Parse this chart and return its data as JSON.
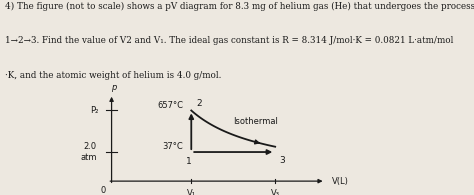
{
  "line1": "4) The figure (not to scale) shows a pV diagram for 8.3 mg of helium gas (He) that undergoes the process",
  "line2": "1→2→3. Find the value of V2 and V₁. The ideal gas constant is R = 8.314 J/mol·K = 0.0821 L·atm/mol",
  "line3": "·K, and the atomic weight of helium is 4.0 g/mol.",
  "p_label": "p",
  "v_label": "V(L)",
  "p2_label": "P₂",
  "p_tick_label": "2.0\natm",
  "x_tick1_label": "V₁",
  "x_tick3_label": "V₃",
  "label_657": "657°C",
  "label_37": "37°C",
  "label_isothermal": "Isothermal",
  "point1_label": "1",
  "point2_label": "2",
  "point3_label": "3",
  "origin_label": "0",
  "bg_color": "#ede8e0",
  "line_color": "#1a1a1a",
  "V1": 0.38,
  "V3": 0.78,
  "P1": 0.35,
  "P2": 0.85,
  "xlim_min": -0.08,
  "xlim_max": 1.05,
  "ylim_min": -0.12,
  "ylim_max": 1.1,
  "n_curve_points": 120,
  "fontsize_text": 6.3,
  "fontsize_diagram": 6.0
}
